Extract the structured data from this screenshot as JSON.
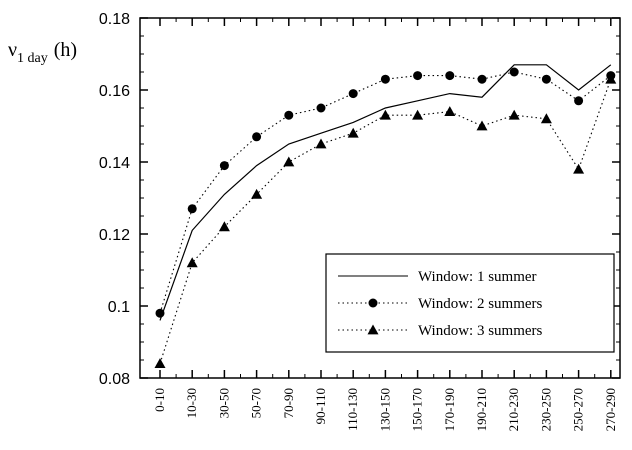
{
  "chart_data": {
    "type": "line",
    "ylabel": {
      "symbol": "ν",
      "subscript": "1 day",
      "unit": "(h)"
    },
    "ylim": [
      0.08,
      0.18
    ],
    "yticks": [
      0.08,
      0.1,
      0.12,
      0.14,
      0.16,
      0.18
    ],
    "ytick_labels": [
      "0.08",
      "0.1",
      "0.12",
      "0.14",
      "0.16",
      "0.18"
    ],
    "categories": [
      "0-10",
      "10-30",
      "30-50",
      "50-70",
      "70-90",
      "90-110",
      "110-130",
      "130-150",
      "150-170",
      "170-190",
      "190-210",
      "210-230",
      "230-250",
      "250-270",
      "270-290"
    ],
    "grid": false,
    "legend_position": "bottom-right",
    "series": [
      {
        "name": "Window: 1 summer",
        "style": "solid",
        "marker": "none",
        "values": [
          0.096,
          0.121,
          0.131,
          0.139,
          0.145,
          0.148,
          0.151,
          0.155,
          0.157,
          0.159,
          0.158,
          0.167,
          0.167,
          0.16,
          0.167
        ]
      },
      {
        "name": "Window: 2 summers",
        "style": "dotted",
        "marker": "circle",
        "values": [
          0.098,
          0.127,
          0.139,
          0.147,
          0.153,
          0.155,
          0.159,
          0.163,
          0.164,
          0.164,
          0.163,
          0.165,
          0.163,
          0.157,
          0.164
        ]
      },
      {
        "name": "Window: 3 summers",
        "style": "dotted",
        "marker": "triangle",
        "values": [
          0.084,
          0.112,
          0.122,
          0.131,
          0.14,
          0.145,
          0.148,
          0.153,
          0.153,
          0.154,
          0.15,
          0.153,
          0.152,
          0.138,
          0.163
        ]
      }
    ]
  }
}
